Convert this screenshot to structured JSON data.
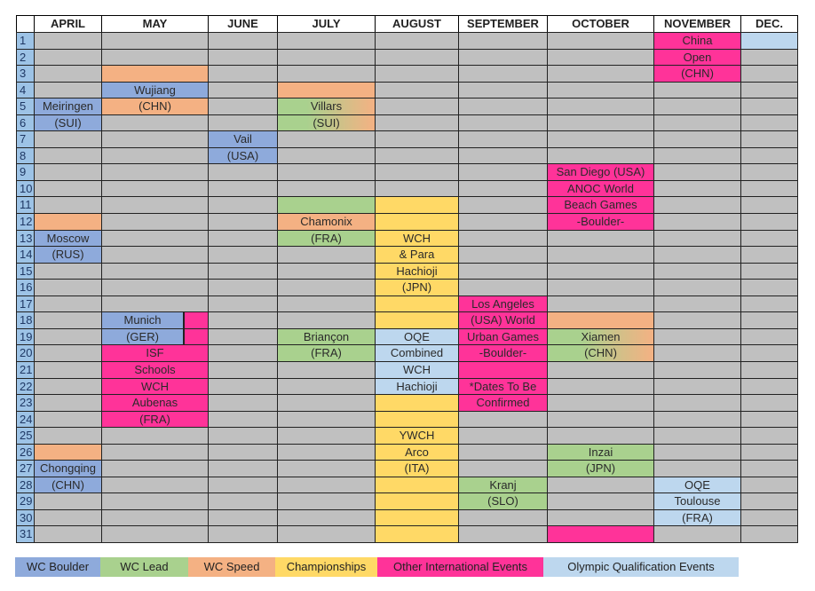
{
  "months": [
    "APRIL",
    "MAY",
    "JUNE",
    "JULY",
    "AUGUST",
    "SEPTEMBER",
    "OCTOBER",
    "NOVEMBER",
    "DEC."
  ],
  "colors": {
    "gray": "#c0c0c0",
    "boulder": "#8eaadb",
    "lead": "#a9d18e",
    "speed": "#f4b183",
    "champ": "#ffd966",
    "other": "#ff3399",
    "oqe": "#bdd7ee",
    "day": "#9dc3e6"
  },
  "legend": [
    {
      "key": "boulder",
      "label": "WC Boulder"
    },
    {
      "key": "lead",
      "label": "WC Lead"
    },
    {
      "key": "speed",
      "label": "WC Speed"
    },
    {
      "key": "champ",
      "label": "Championships"
    },
    {
      "key": "other",
      "label": "Other International Events"
    },
    {
      "key": "oqe",
      "label": "Olympic Qualification Events"
    }
  ],
  "events": [
    {
      "month": 0,
      "start": 5,
      "types": [
        "boulder"
      ],
      "lines": [
        "Meiringen",
        "(SUI)"
      ]
    },
    {
      "month": 0,
      "start": 12,
      "types": [
        "speed"
      ],
      "lines": [
        ""
      ]
    },
    {
      "month": 0,
      "start": 13,
      "types": [
        "boulder"
      ],
      "lines": [
        "Moscow",
        "(RUS)"
      ]
    },
    {
      "month": 0,
      "start": 26,
      "types": [
        "speed"
      ],
      "lines": [
        ""
      ]
    },
    {
      "month": 0,
      "start": 27,
      "types": [
        "boulder"
      ],
      "lines": [
        "Chongqing",
        "(CHN)"
      ]
    },
    {
      "month": 1,
      "start": 3,
      "types": [
        "speed"
      ],
      "lines": [
        ""
      ]
    },
    {
      "month": 1,
      "start": 4,
      "types": [
        "boulder"
      ],
      "lines": [
        "Wujiang"
      ]
    },
    {
      "month": 1,
      "start": 5,
      "types": [
        "speed"
      ],
      "lines": [
        "(CHN)"
      ]
    },
    {
      "month": 1,
      "start": 18,
      "types": [
        "other"
      ],
      "lines": [
        "",
        "",
        "ISF",
        "Schools",
        "WCH",
        "Aubenas",
        "(FRA)"
      ]
    },
    {
      "month": 1,
      "start": 18,
      "types": [
        "boulder"
      ],
      "overlay": true,
      "lines": [
        "Munich",
        "(GER)"
      ]
    },
    {
      "month": 2,
      "start": 7,
      "types": [
        "boulder"
      ],
      "lines": [
        "Vail",
        "(USA)"
      ]
    },
    {
      "month": 3,
      "start": 4,
      "types": [
        "speed"
      ],
      "lines": [
        ""
      ]
    },
    {
      "month": 3,
      "start": 5,
      "types": [
        "lead",
        "speed"
      ],
      "lines": [
        "Villars",
        "(SUI)"
      ]
    },
    {
      "month": 3,
      "start": 11,
      "types": [
        "lead"
      ],
      "lines": [
        ""
      ]
    },
    {
      "month": 3,
      "start": 12,
      "types": [
        "speed"
      ],
      "lines": [
        "Chamonix"
      ]
    },
    {
      "month": 3,
      "start": 13,
      "types": [
        "lead"
      ],
      "lines": [
        "(FRA)"
      ]
    },
    {
      "month": 3,
      "start": 19,
      "types": [
        "lead"
      ],
      "lines": [
        "Briançon",
        "(FRA)"
      ]
    },
    {
      "month": 4,
      "start": 11,
      "types": [
        "champ"
      ],
      "lines": [
        "",
        ""
      ]
    },
    {
      "month": 4,
      "start": 13,
      "types": [
        "champ"
      ],
      "lines": [
        "WCH",
        "& Para",
        "Hachioji",
        "(JPN)"
      ]
    },
    {
      "month": 4,
      "start": 17,
      "types": [
        "champ"
      ],
      "lines": [
        "",
        ""
      ]
    },
    {
      "month": 4,
      "start": 19,
      "types": [
        "oqe"
      ],
      "lines": [
        "OQE",
        "Combined",
        "WCH",
        "Hachioji"
      ]
    },
    {
      "month": 4,
      "start": 23,
      "types": [
        "champ"
      ],
      "lines": [
        "",
        ""
      ]
    },
    {
      "month": 4,
      "start": 25,
      "types": [
        "champ"
      ],
      "lines": [
        "YWCH",
        "Arco",
        "(ITA)",
        "",
        "",
        "",
        ""
      ]
    },
    {
      "month": 5,
      "start": 17,
      "types": [
        "other"
      ],
      "lines": [
        "Los Angeles",
        "(USA) World",
        "Urban Games",
        "-Boulder-",
        "",
        "*Dates To Be",
        "Confirmed"
      ]
    },
    {
      "month": 5,
      "start": 28,
      "types": [
        "lead"
      ],
      "lines": [
        "Kranj",
        "(SLO)"
      ]
    },
    {
      "month": 6,
      "start": 9,
      "types": [
        "other"
      ],
      "lines": [
        "San Diego (USA)",
        "ANOC World",
        "Beach Games",
        "-Boulder-"
      ]
    },
    {
      "month": 6,
      "start": 18,
      "types": [
        "speed"
      ],
      "lines": [
        ""
      ]
    },
    {
      "month": 6,
      "start": 19,
      "types": [
        "lead",
        "speed"
      ],
      "lines": [
        "Xiamen",
        "(CHN)"
      ]
    },
    {
      "month": 6,
      "start": 26,
      "types": [
        "lead"
      ],
      "lines": [
        "Inzai",
        "(JPN)"
      ]
    },
    {
      "month": 6,
      "start": 31,
      "types": [
        "other"
      ],
      "lines": [
        ""
      ]
    },
    {
      "month": 7,
      "start": 1,
      "types": [
        "other"
      ],
      "lines": [
        "China",
        "Open",
        "(CHN)"
      ]
    },
    {
      "month": 7,
      "start": 28,
      "types": [
        "oqe"
      ],
      "lines": [
        "OQE",
        "Toulouse",
        "(FRA)"
      ]
    },
    {
      "month": 8,
      "start": 1,
      "types": [
        "oqe"
      ],
      "lines": [
        ""
      ]
    }
  ]
}
